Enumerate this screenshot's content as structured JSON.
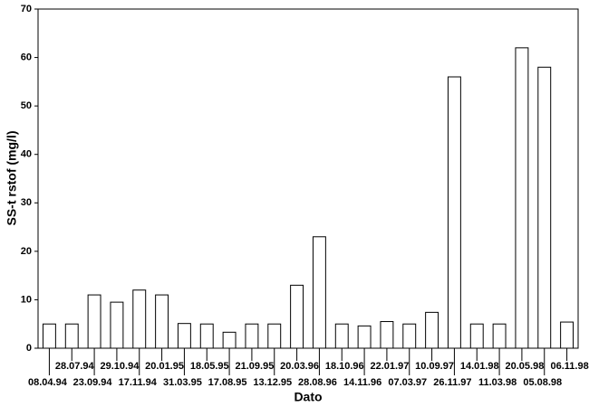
{
  "chart_data": {
    "type": "bar",
    "xlabel": "Dato",
    "ylabel": "SS-t rstof (mg/l)",
    "categories": [
      "08.04.94",
      "28.07.94",
      "23.09.94",
      "29.10.94",
      "17.11.94",
      "20.01.95",
      "31.03.95",
      "18.05.95",
      "17.08.95",
      "21.09.95",
      "13.12.95",
      "20.03.96",
      "28.08.96",
      "18.10.96",
      "14.11.96",
      "22.01.97",
      "07.03.97",
      "10.09.97",
      "26.11.97",
      "14.01.98",
      "11.03.98",
      "20.05.98",
      "05.08.98",
      "06.11.98"
    ],
    "values": [
      5,
      5,
      11,
      9.5,
      12,
      11,
      5.1,
      5,
      3.3,
      5,
      5,
      13,
      23,
      5,
      4.6,
      5.5,
      5,
      7.4,
      56,
      5,
      5,
      62,
      58,
      5.4
    ],
    "color": "#ffffff",
    "ylim": [
      0,
      70
    ],
    "yticks": [
      0,
      10,
      20,
      30,
      40,
      50,
      60,
      70
    ],
    "grid": false
  }
}
